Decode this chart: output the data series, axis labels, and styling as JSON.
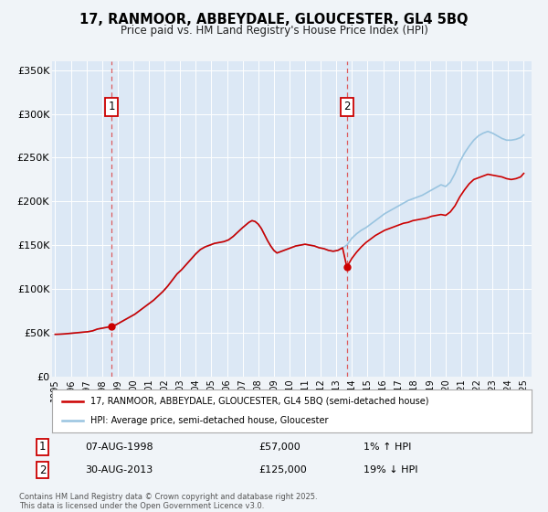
{
  "title": "17, RANMOOR, ABBEYDALE, GLOUCESTER, GL4 5BQ",
  "subtitle": "Price paid vs. HM Land Registry's House Price Index (HPI)",
  "background_color": "#f0f4f8",
  "plot_bg_color": "#dce8f5",
  "ylim": [
    0,
    360000
  ],
  "yticks": [
    0,
    50000,
    100000,
    150000,
    200000,
    250000,
    300000,
    350000
  ],
  "ytick_labels": [
    "£0",
    "£50K",
    "£100K",
    "£150K",
    "£200K",
    "£250K",
    "£300K",
    "£350K"
  ],
  "xlim_start": 1994.8,
  "xlim_end": 2025.5,
  "xticks": [
    1995,
    1996,
    1997,
    1998,
    1999,
    2000,
    2001,
    2002,
    2003,
    2004,
    2005,
    2006,
    2007,
    2008,
    2009,
    2010,
    2011,
    2012,
    2013,
    2014,
    2015,
    2016,
    2017,
    2018,
    2019,
    2020,
    2021,
    2022,
    2023,
    2024,
    2025
  ],
  "sale1_x": 1998.6,
  "sale1_y": 57000,
  "sale1_label": "1",
  "sale2_x": 2013.67,
  "sale2_y": 125000,
  "sale2_label": "2",
  "red_color": "#cc0000",
  "blue_color": "#99c4e0",
  "marker_color": "#cc0000",
  "vline_color": "#dd4444",
  "legend_label_red": "17, RANMOOR, ABBEYDALE, GLOUCESTER, GL4 5BQ (semi-detached house)",
  "legend_label_blue": "HPI: Average price, semi-detached house, Gloucester",
  "footer": "Contains HM Land Registry data © Crown copyright and database right 2025.\nThis data is licensed under the Open Government Licence v3.0.",
  "hpi_red_x": [
    1995.0,
    1995.3,
    1995.6,
    1995.9,
    1996.2,
    1996.5,
    1996.8,
    1997.1,
    1997.4,
    1997.7,
    1998.0,
    1998.3,
    1998.6,
    1998.9,
    1999.2,
    1999.5,
    1999.8,
    2000.1,
    2000.4,
    2000.7,
    2001.0,
    2001.3,
    2001.6,
    2001.9,
    2002.2,
    2002.5,
    2002.8,
    2003.1,
    2003.4,
    2003.7,
    2004.0,
    2004.3,
    2004.6,
    2004.9,
    2005.2,
    2005.5,
    2005.8,
    2006.1,
    2006.4,
    2006.7,
    2007.0,
    2007.2,
    2007.4,
    2007.6,
    2007.8,
    2008.0,
    2008.2,
    2008.4,
    2008.6,
    2008.8,
    2009.0,
    2009.2,
    2009.5,
    2009.8,
    2010.1,
    2010.4,
    2010.7,
    2011.0,
    2011.3,
    2011.6,
    2011.9,
    2012.2,
    2012.5,
    2012.8,
    2013.1,
    2013.4,
    2013.67,
    2014.0,
    2014.3,
    2014.6,
    2014.9,
    2015.2,
    2015.5,
    2015.8,
    2016.1,
    2016.4,
    2016.7,
    2017.0,
    2017.3,
    2017.6,
    2017.9,
    2018.2,
    2018.5,
    2018.8,
    2019.1,
    2019.4,
    2019.7,
    2020.0,
    2020.3,
    2020.6,
    2020.9,
    2021.2,
    2021.5,
    2021.8,
    2022.1,
    2022.4,
    2022.7,
    2023.0,
    2023.3,
    2023.6,
    2023.9,
    2024.2,
    2024.5,
    2024.8,
    2025.0
  ],
  "hpi_red_y": [
    48000,
    48200,
    48500,
    49000,
    49500,
    50000,
    50500,
    51000,
    52000,
    54000,
    55000,
    56000,
    57000,
    59000,
    62000,
    65000,
    68000,
    71000,
    75000,
    79000,
    83000,
    87000,
    92000,
    97000,
    103000,
    110000,
    117000,
    122000,
    128000,
    134000,
    140000,
    145000,
    148000,
    150000,
    152000,
    153000,
    154000,
    156000,
    160000,
    165000,
    170000,
    173000,
    176000,
    178000,
    177000,
    174000,
    169000,
    162000,
    155000,
    149000,
    144000,
    141000,
    143000,
    145000,
    147000,
    149000,
    150000,
    151000,
    150000,
    149000,
    147000,
    146000,
    144000,
    143000,
    144000,
    147000,
    125000,
    135000,
    142000,
    148000,
    153000,
    157000,
    161000,
    164000,
    167000,
    169000,
    171000,
    173000,
    175000,
    176000,
    178000,
    179000,
    180000,
    181000,
    183000,
    184000,
    185000,
    184000,
    188000,
    195000,
    205000,
    213000,
    220000,
    225000,
    227000,
    229000,
    231000,
    230000,
    229000,
    228000,
    226000,
    225000,
    226000,
    228000,
    232000
  ],
  "hpi_blue_x": [
    1995.0,
    1995.3,
    1995.6,
    1995.9,
    1996.2,
    1996.5,
    1996.8,
    1997.1,
    1997.4,
    1997.7,
    1998.0,
    1998.3,
    1998.6,
    1998.9,
    1999.2,
    1999.5,
    1999.8,
    2000.1,
    2000.4,
    2000.7,
    2001.0,
    2001.3,
    2001.6,
    2001.9,
    2002.2,
    2002.5,
    2002.8,
    2003.1,
    2003.4,
    2003.7,
    2004.0,
    2004.3,
    2004.6,
    2004.9,
    2005.2,
    2005.5,
    2005.8,
    2006.1,
    2006.4,
    2006.7,
    2007.0,
    2007.2,
    2007.4,
    2007.6,
    2007.8,
    2008.0,
    2008.2,
    2008.4,
    2008.6,
    2008.8,
    2009.0,
    2009.2,
    2009.5,
    2009.8,
    2010.1,
    2010.4,
    2010.7,
    2011.0,
    2011.3,
    2011.6,
    2011.9,
    2012.2,
    2012.5,
    2012.8,
    2013.1,
    2013.4,
    2013.67,
    2014.0,
    2014.3,
    2014.6,
    2014.9,
    2015.2,
    2015.5,
    2015.8,
    2016.1,
    2016.4,
    2016.7,
    2017.0,
    2017.3,
    2017.6,
    2017.9,
    2018.2,
    2018.5,
    2018.8,
    2019.1,
    2019.4,
    2019.7,
    2020.0,
    2020.3,
    2020.6,
    2020.9,
    2021.2,
    2021.5,
    2021.8,
    2022.1,
    2022.4,
    2022.7,
    2023.0,
    2023.3,
    2023.6,
    2023.9,
    2024.2,
    2024.5,
    2024.8,
    2025.0
  ],
  "hpi_blue_y": [
    48000,
    48200,
    48500,
    49000,
    49500,
    50000,
    50500,
    51000,
    52000,
    54000,
    55000,
    56000,
    57000,
    59000,
    62000,
    65000,
    68000,
    71000,
    75000,
    79000,
    83000,
    87000,
    92000,
    97000,
    103000,
    110000,
    117000,
    122000,
    128000,
    134000,
    140000,
    145000,
    148000,
    150000,
    152000,
    153000,
    154000,
    156000,
    160000,
    165000,
    170000,
    173000,
    176000,
    178000,
    177000,
    174000,
    169000,
    162000,
    155000,
    149000,
    144000,
    141000,
    143000,
    145000,
    147000,
    149000,
    150000,
    151000,
    150000,
    149000,
    147000,
    146000,
    144000,
    143000,
    144000,
    147000,
    150000,
    158000,
    163000,
    167000,
    170000,
    174000,
    178000,
    182000,
    186000,
    189000,
    192000,
    195000,
    198000,
    201000,
    203000,
    205000,
    207000,
    210000,
    213000,
    216000,
    219000,
    217000,
    222000,
    232000,
    245000,
    255000,
    263000,
    270000,
    275000,
    278000,
    280000,
    278000,
    275000,
    272000,
    270000,
    270000,
    271000,
    273000,
    276000
  ]
}
